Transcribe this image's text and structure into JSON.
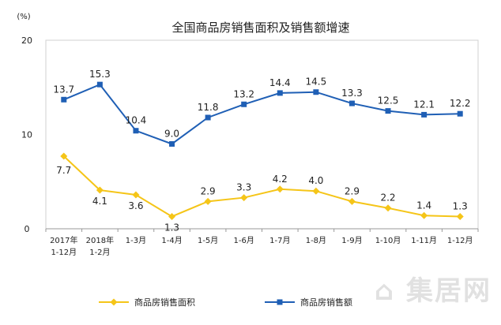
{
  "chart_data": {
    "type": "line",
    "title": "全国商品房销售面积及销售额增速",
    "ylabel": "(%)",
    "ylim": [
      0,
      20
    ],
    "yticks": [
      "0",
      "10",
      "20"
    ],
    "grid": false,
    "legend_position": "bottom",
    "categories": [
      [
        "2017年",
        "1-12月"
      ],
      [
        "2018年",
        "1-2月"
      ],
      [
        "1-3月"
      ],
      [
        "1-4月"
      ],
      [
        "1-5月"
      ],
      [
        "1-6月"
      ],
      [
        "1-7月"
      ],
      [
        "1-8月"
      ],
      [
        "1-9月"
      ],
      [
        "1-10月"
      ],
      [
        "1-11月"
      ],
      [
        "1-12月"
      ]
    ],
    "series": [
      {
        "name": "商品房销售面积",
        "color": "#f5c518",
        "marker": "diamond",
        "values": [
          7.7,
          4.1,
          3.6,
          1.3,
          2.9,
          3.3,
          4.2,
          4.0,
          2.9,
          2.2,
          1.4,
          1.3
        ]
      },
      {
        "name": "商品房销售额",
        "color": "#1f5fb5",
        "marker": "square",
        "values": [
          13.7,
          15.3,
          10.4,
          9.0,
          11.8,
          13.2,
          14.4,
          14.5,
          13.3,
          12.5,
          12.1,
          12.2
        ]
      }
    ]
  },
  "watermark": "集居网"
}
